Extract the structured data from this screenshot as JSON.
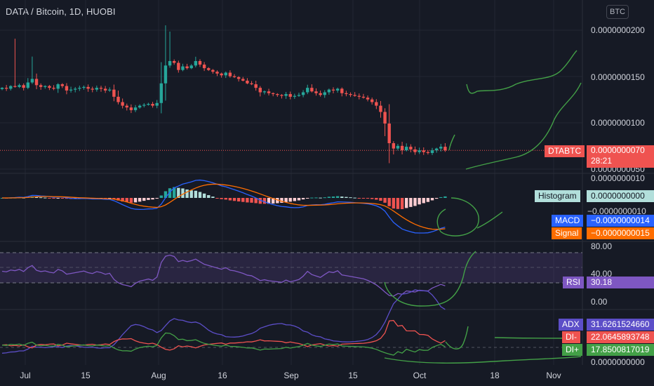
{
  "header": {
    "title": "DATA / Bitcoin, 1D, HUOBI",
    "currency_button": "BTC"
  },
  "colors": {
    "background": "#161a25",
    "up": "#26a69a",
    "down": "#ef5350",
    "macd": "#2962ff",
    "signal": "#ff6d00",
    "rsi": "#7e57c2",
    "adx": "#5c4ec8",
    "di_minus": "#ef5350",
    "di_plus": "#43a047",
    "drawing": "#43a047"
  },
  "axes": {
    "price_ticks": [
      "0.0000000200",
      "0.0000000150",
      "0.0000000100",
      "0.0000000050"
    ],
    "macd_ticks": [
      "0.0000000010",
      "−0.0000000010"
    ],
    "rsi_ticks": [
      "80.00",
      "40.00",
      "0.00"
    ],
    "adx_ticks": [
      "0.0000000000"
    ],
    "x_ticks": [
      "Jul",
      "15",
      "Aug",
      "16",
      "Sep",
      "15",
      "Oct",
      "18",
      "Nov"
    ]
  },
  "labels": {
    "price": {
      "name": "DTABTC",
      "value": "0.0000000070",
      "countdown": "28:21"
    },
    "histogram": {
      "name": "Histogram",
      "value": "0.0000000000"
    },
    "macd": {
      "name": "MACD",
      "value": "−0.0000000014"
    },
    "signal": {
      "name": "Signal",
      "value": "−0.0000000015"
    },
    "rsi": {
      "name": "RSI",
      "value": "30.18"
    },
    "adx": {
      "name": "ADX",
      "value": "31.6261524660"
    },
    "di_minus": {
      "name": "DI-",
      "value": "22.0645893748"
    },
    "di_plus": {
      "name": "DI+",
      "value": "17.8500817019"
    }
  },
  "chart_data": {
    "type": "candlestick",
    "title": "DATA / Bitcoin, 1D, HUOBI",
    "x_range": [
      "2021-06-28",
      "2021-11-05"
    ],
    "price_range": [
      4.5e-09,
      2.25e-08
    ],
    "candles": {
      "start": "2021-06-28",
      "close": [
        1.4e-08,
        1.39e-08,
        1.42e-08,
        1.41e-08,
        1.43e-08,
        1.4e-08,
        1.46e-08,
        1.5e-08,
        1.43e-08,
        1.41e-08,
        1.42e-08,
        1.4e-08,
        1.39e-08,
        1.44e-08,
        1.42e-08,
        1.37e-08,
        1.38e-08,
        1.39e-08,
        1.4e-08,
        1.41e-08,
        1.39e-08,
        1.38e-08,
        1.4e-08,
        1.39e-08,
        1.37e-08,
        1.38e-08,
        1.3e-08,
        1.24e-08,
        1.2e-08,
        1.18e-08,
        1.15e-08,
        1.18e-08,
        1.2e-08,
        1.21e-08,
        1.22e-08,
        1.2e-08,
        1.23e-08,
        1.45e-08,
        1.65e-08,
        1.7e-08,
        1.68e-08,
        1.6e-08,
        1.64e-08,
        1.62e-08,
        1.65e-08,
        1.7e-08,
        1.66e-08,
        1.62e-08,
        1.6e-08,
        1.58e-08,
        1.56e-08,
        1.54e-08,
        1.57e-08,
        1.53e-08,
        1.52e-08,
        1.5e-08,
        1.48e-08,
        1.45e-08,
        1.44e-08,
        1.4e-08,
        1.35e-08,
        1.36e-08,
        1.34e-08,
        1.33e-08,
        1.32e-08,
        1.31e-08,
        1.33e-08,
        1.3e-08,
        1.31e-08,
        1.32e-08,
        1.35e-08,
        1.4e-08,
        1.36e-08,
        1.34e-08,
        1.32e-08,
        1.35e-08,
        1.38e-08,
        1.37e-08,
        1.39e-08,
        1.34e-08,
        1.33e-08,
        1.32e-08,
        1.31e-08,
        1.3e-08,
        1.29e-08,
        1.27e-08,
        1.24e-08,
        1.2e-08,
        1.13e-08,
        1e-08,
        7.8e-09,
        7.2e-09,
        7.5e-09,
        7e-09,
        7.4e-09,
        7.1e-09,
        6.8e-09,
        7e-09,
        6.8e-09,
        6.7e-09,
        7e-09,
        7.2e-09,
        7.4e-09,
        7e-09
      ],
      "last_price": 7e-09,
      "countdown": "28:21"
    },
    "indicators": {
      "macd": {
        "histogram_last": 0.0,
        "macd_last": -1.4e-09,
        "signal_last": -1.5e-09
      },
      "rsi": {
        "last": 30.18,
        "upper_band": 70,
        "middle": 50,
        "lower_band": 30,
        "ylim": [
          0,
          100
        ]
      },
      "adx": {
        "adx_last": 31.626152466,
        "di_minus_last": 22.0645893748,
        "di_plus_last": 17.8500817019
      }
    }
  }
}
